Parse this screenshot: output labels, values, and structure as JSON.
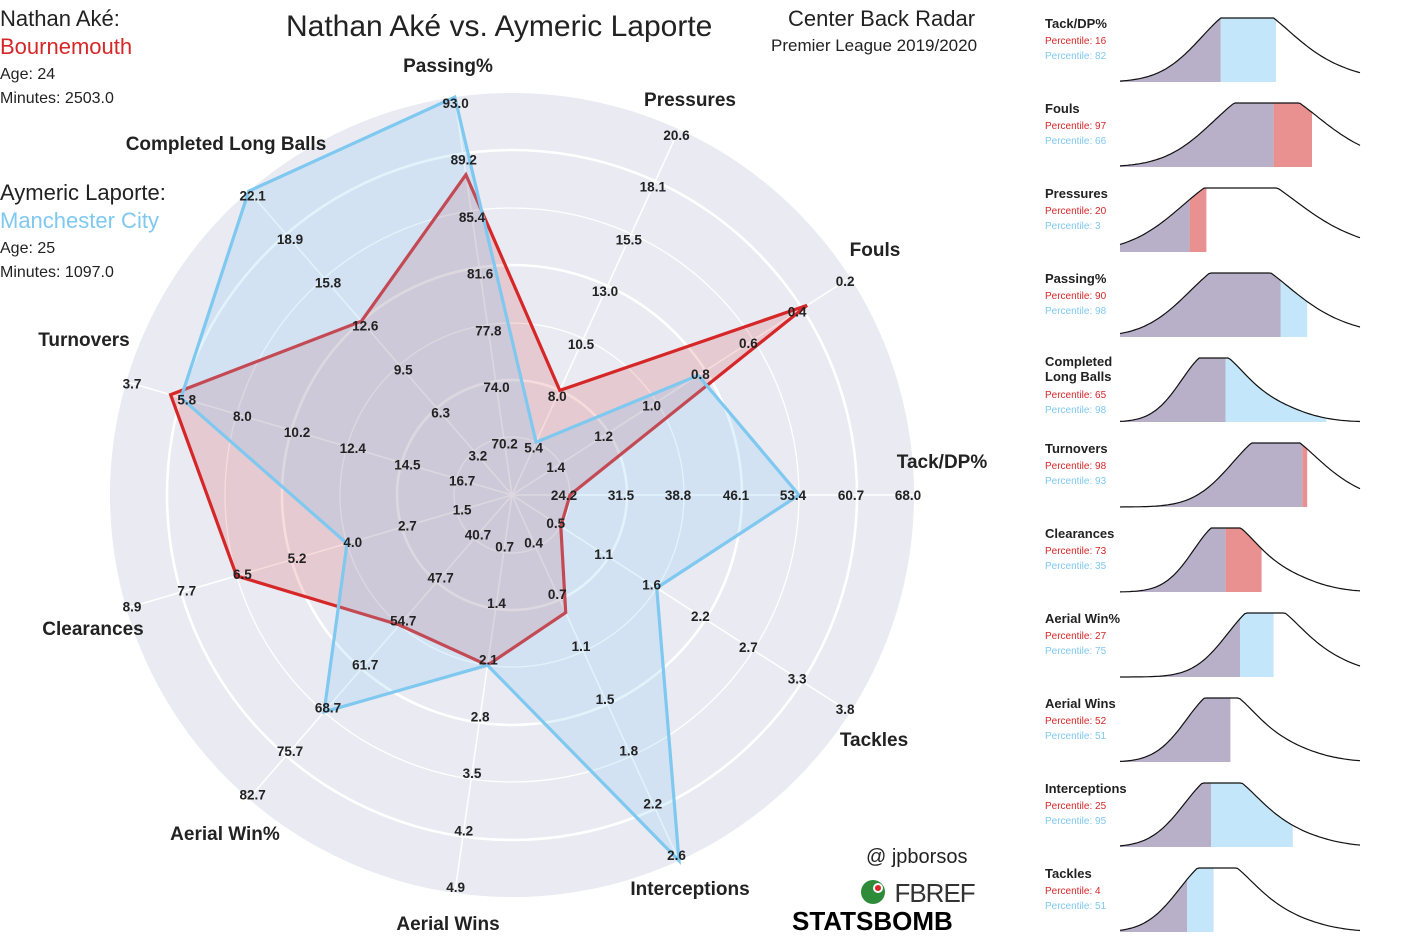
{
  "title": "Nathan Aké vs. Aymeric Laporte",
  "subtitle_main": "Center Back Radar",
  "subtitle_league": "Premier League 2019/2020",
  "credit_handle": "@ jpborsos",
  "logos": {
    "fbref": "FBREF",
    "statsbomb": "STATSBOMB"
  },
  "player1": {
    "name": "Nathan Aké:",
    "team": "Bournemouth",
    "age": "Age: 24",
    "minutes": "Minutes: 2503.0",
    "color": "#d62728"
  },
  "player2": {
    "name": "Aymeric Laporte:",
    "team": "Manchester City",
    "age": "Age: 25",
    "minutes": "Minutes: 1097.0",
    "color": "#7fc8f0"
  },
  "chart_data": {
    "type": "radar",
    "title": "Nathan Aké vs. Aymeric Laporte",
    "axes": [
      {
        "name": "Tack/DP%",
        "ticks": [
          "24.2",
          "31.5",
          "38.8",
          "46.1",
          "53.4",
          "60.7",
          "68.0"
        ]
      },
      {
        "name": "Fouls",
        "ticks": [
          "1.4",
          "1.2",
          "1.0",
          "0.8",
          "0.6",
          "0.4",
          "0.2"
        ]
      },
      {
        "name": "Pressures",
        "ticks": [
          "5.4",
          "8.0",
          "10.5",
          "13.0",
          "15.5",
          "18.1",
          "20.6"
        ]
      },
      {
        "name": "Passing%",
        "ticks": [
          "70.2",
          "74.0",
          "77.8",
          "81.6",
          "85.4",
          "89.2",
          "93.0"
        ]
      },
      {
        "name": "Completed Long Balls",
        "ticks": [
          "3.2",
          "6.3",
          "9.5",
          "12.6",
          "15.8",
          "18.9",
          "22.1"
        ]
      },
      {
        "name": "Turnovers",
        "ticks": [
          "16.7",
          "14.5",
          "12.4",
          "10.2",
          "8.0",
          "5.8",
          "3.7"
        ]
      },
      {
        "name": "Clearances",
        "ticks": [
          "1.5",
          "2.7",
          "4.0",
          "5.2",
          "6.5",
          "7.7",
          "8.9"
        ]
      },
      {
        "name": "Aerial Win%",
        "ticks": [
          "40.7",
          "47.7",
          "54.7",
          "61.7",
          "68.7",
          "75.7",
          "82.7"
        ]
      },
      {
        "name": "Aerial Wins",
        "ticks": [
          "0.7",
          "1.4",
          "2.1",
          "2.8",
          "3.5",
          "4.2",
          "4.9"
        ]
      },
      {
        "name": "Interceptions",
        "ticks": [
          "0.4",
          "0.7",
          "1.1",
          "1.5",
          "1.8",
          "2.2",
          "2.6"
        ]
      },
      {
        "name": "Tackles",
        "ticks": [
          "0.5",
          "1.1",
          "1.6",
          "2.2",
          "2.7",
          "3.3",
          "3.8"
        ]
      }
    ],
    "series": [
      {
        "name": "Nathan Aké",
        "color": "#d62728",
        "values": [
          24.2,
          0.38,
          8.0,
          87.8,
          12.6,
          5.4,
          6.5,
          54.7,
          2.1,
          0.8,
          0.5
        ]
      },
      {
        "name": "Aymeric Laporte",
        "color": "#7fc8f0",
        "values": [
          53.4,
          0.83,
          5.4,
          93.0,
          22.1,
          5.8,
          4.0,
          68.7,
          2.1,
          2.6,
          1.6
        ]
      }
    ],
    "kde_panels": [
      {
        "label": "Tack/DP%",
        "p1": "Percentile: 16",
        "p2": "Percentile: 82",
        "v1": 0.42,
        "v2": 0.65,
        "peak": 0.5,
        "width": 0.17
      },
      {
        "label": "Fouls",
        "p1": "Percentile: 97",
        "p2": "Percentile: 66",
        "v1": 0.8,
        "v2": 0.64,
        "peak": 0.58,
        "width": 0.2
      },
      {
        "label": "Pressures",
        "p1": "Percentile: 20",
        "p2": "Percentile: 3",
        "v1": 0.36,
        "v2": 0.29,
        "peak": 0.47,
        "width": 0.22
      },
      {
        "label": "Passing%",
        "p1": "Percentile: 90",
        "p2": "Percentile: 98",
        "v1": 0.67,
        "v2": 0.78,
        "peak": 0.47,
        "width": 0.19
      },
      {
        "label": "Completed\nLong Balls",
        "p1": "Percentile: 65",
        "p2": "Percentile: 98",
        "v1": 0.44,
        "v2": 0.86,
        "peak": 0.37,
        "width": 0.12
      },
      {
        "label": "Turnovers",
        "p1": "Percentile: 98",
        "p2": "Percentile: 93",
        "v1": 0.78,
        "v2": 0.76,
        "peak": 0.62,
        "width": 0.16
      },
      {
        "label": "Clearances",
        "p1": "Percentile: 73",
        "p2": "Percentile: 35",
        "v1": 0.59,
        "v2": 0.44,
        "peak": 0.42,
        "width": 0.12
      },
      {
        "label": "Aerial Win%",
        "p1": "Percentile: 27",
        "p2": "Percentile: 75",
        "v1": 0.5,
        "v2": 0.64,
        "peak": 0.58,
        "width": 0.14
      },
      {
        "label": "Aerial Wins",
        "p1": "Percentile: 52",
        "p2": "Percentile: 51",
        "v1": 0.46,
        "v2": 0.46,
        "peak": 0.4,
        "width": 0.13
      },
      {
        "label": "Interceptions",
        "p1": "Percentile: 25",
        "p2": "Percentile: 95",
        "v1": 0.38,
        "v2": 0.72,
        "peak": 0.4,
        "width": 0.14
      },
      {
        "label": "Tackles",
        "p1": "Percentile: 4",
        "p2": "Percentile: 51",
        "v1": 0.28,
        "v2": 0.39,
        "peak": 0.38,
        "width": 0.14
      }
    ]
  }
}
